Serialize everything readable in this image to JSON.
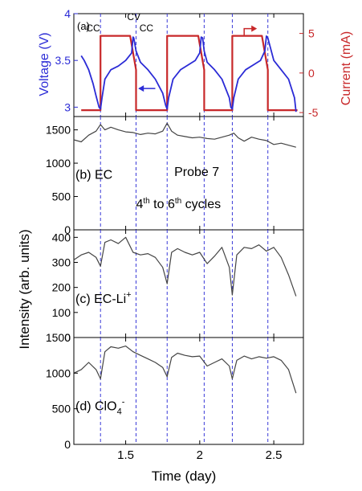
{
  "figure": {
    "shared_x": {
      "label": "Time (day)",
      "range": [
        1.15,
        2.7
      ],
      "ticks": [
        1.5,
        2,
        2.5
      ],
      "tick_labels": [
        "1.5",
        "2",
        "2.5"
      ],
      "vlines": [
        1.33,
        1.57,
        1.78,
        2.03,
        2.22,
        2.46
      ]
    },
    "shared_y_label": "Intensity (arb. units)",
    "colors": {
      "voltage": "#2b2bd6",
      "current": "#c8282a",
      "intensity": "#444444",
      "vline": "#3a3ad8"
    }
  },
  "chart_data": [
    {
      "panel": "a",
      "type": "line",
      "label": "(a)",
      "ylabel_left": "Voltage (V)",
      "ylabel_right": "Current (mA)",
      "ylim_left": [
        2.9,
        4.0
      ],
      "yticks_left": [
        "3",
        "3.5",
        "4"
      ],
      "ylim_right": [
        -5.5,
        7.5
      ],
      "yticks_right": [
        "-5",
        "0",
        "5"
      ],
      "annotations": [
        "CC",
        "CV",
        "CC"
      ],
      "series": [
        {
          "axis": "left",
          "x": [
            1.2,
            1.22,
            1.25,
            1.28,
            1.3,
            1.32,
            1.33,
            1.34,
            1.36,
            1.4,
            1.45,
            1.5,
            1.54,
            1.55,
            1.555,
            1.57,
            1.6,
            1.65,
            1.7,
            1.75,
            1.77,
            1.78,
            1.79,
            1.82,
            1.87,
            1.92,
            1.97,
            2.0,
            2.01,
            2.02,
            2.03,
            2.05,
            2.1,
            2.15,
            2.2,
            2.21,
            2.22,
            2.23,
            2.26,
            2.31,
            2.36,
            2.41,
            2.44,
            2.45,
            2.46,
            2.5,
            2.55,
            2.6,
            2.64,
            2.65
          ],
          "values": [
            3.55,
            3.5,
            3.4,
            3.25,
            3.12,
            3.0,
            2.98,
            3.1,
            3.3,
            3.4,
            3.44,
            3.5,
            3.58,
            3.75,
            3.74,
            3.6,
            3.48,
            3.4,
            3.3,
            3.15,
            3.02,
            2.98,
            3.1,
            3.3,
            3.4,
            3.45,
            3.5,
            3.58,
            3.75,
            3.74,
            3.6,
            3.48,
            3.4,
            3.3,
            3.1,
            3.0,
            2.98,
            3.1,
            3.3,
            3.4,
            3.45,
            3.5,
            3.6,
            3.76,
            3.74,
            3.5,
            3.4,
            3.3,
            3.1,
            2.95
          ]
        },
        {
          "axis": "right",
          "x": [
            1.2,
            1.33,
            1.33,
            1.53,
            1.53,
            1.57,
            1.57,
            1.78,
            1.78,
            1.99,
            1.99,
            2.03,
            2.03,
            2.22,
            2.22,
            2.42,
            2.42,
            2.46,
            2.46,
            2.66
          ],
          "values": [
            -4.7,
            -4.7,
            4.7,
            4.7,
            4.7,
            0.4,
            -4.7,
            -4.7,
            4.7,
            4.7,
            4.7,
            0.4,
            -4.7,
            -4.7,
            4.7,
            4.7,
            4.7,
            0.4,
            -4.7,
            -4.7
          ]
        }
      ]
    },
    {
      "panel": "b",
      "type": "line",
      "label": "(b)",
      "species": "EC",
      "text_probe": "Probe 7",
      "text_cycles": "4th to 6th cycles",
      "text_cycles_parts": [
        "4",
        "th",
        " to 6",
        "th",
        " cycles"
      ],
      "ylim": [
        0,
        1700
      ],
      "yticks": [
        "0",
        "500",
        "1000",
        "1500"
      ],
      "x": [
        1.15,
        1.2,
        1.25,
        1.3,
        1.33,
        1.36,
        1.4,
        1.45,
        1.5,
        1.55,
        1.6,
        1.65,
        1.7,
        1.75,
        1.78,
        1.81,
        1.85,
        1.9,
        1.95,
        2.0,
        2.05,
        2.1,
        2.15,
        2.2,
        2.23,
        2.26,
        2.3,
        2.35,
        2.4,
        2.45,
        2.5,
        2.55,
        2.6,
        2.65
      ],
      "values": [
        1350,
        1320,
        1420,
        1480,
        1580,
        1500,
        1540,
        1500,
        1470,
        1460,
        1430,
        1450,
        1440,
        1480,
        1600,
        1480,
        1420,
        1400,
        1380,
        1390,
        1370,
        1360,
        1390,
        1420,
        1450,
        1380,
        1330,
        1390,
        1360,
        1340,
        1280,
        1300,
        1270,
        1240
      ]
    },
    {
      "panel": "c",
      "type": "line",
      "label": "(c)",
      "species": "EC-Li",
      "species_sup": "+",
      "ylim": [
        0,
        430
      ],
      "yticks": [
        "0",
        "100",
        "200",
        "300",
        "400"
      ],
      "x": [
        1.15,
        1.2,
        1.25,
        1.3,
        1.33,
        1.36,
        1.4,
        1.45,
        1.5,
        1.55,
        1.6,
        1.65,
        1.7,
        1.75,
        1.78,
        1.81,
        1.85,
        1.9,
        1.95,
        2.0,
        2.05,
        2.1,
        2.15,
        2.2,
        2.22,
        2.25,
        2.3,
        2.35,
        2.4,
        2.45,
        2.5,
        2.55,
        2.6,
        2.65
      ],
      "values": [
        310,
        330,
        340,
        320,
        285,
        380,
        390,
        375,
        400,
        340,
        330,
        335,
        320,
        280,
        215,
        340,
        355,
        340,
        330,
        340,
        295,
        325,
        360,
        280,
        170,
        330,
        360,
        355,
        370,
        345,
        360,
        320,
        250,
        165
      ]
    },
    {
      "panel": "d",
      "type": "line",
      "label": "(d)",
      "species": "ClO",
      "species_sub": "4",
      "species_sup": "-",
      "ylim": [
        0,
        1500
      ],
      "yticks": [
        "0",
        "500",
        "1000",
        "1500"
      ],
      "x": [
        1.15,
        1.2,
        1.25,
        1.3,
        1.33,
        1.36,
        1.4,
        1.45,
        1.5,
        1.55,
        1.6,
        1.65,
        1.7,
        1.75,
        1.78,
        1.81,
        1.85,
        1.9,
        1.95,
        2.0,
        2.05,
        2.1,
        2.15,
        2.2,
        2.22,
        2.25,
        2.3,
        2.35,
        2.4,
        2.45,
        2.5,
        2.55,
        2.6,
        2.65
      ],
      "values": [
        1000,
        1050,
        1150,
        1050,
        920,
        1300,
        1370,
        1350,
        1380,
        1300,
        1250,
        1200,
        1150,
        1080,
        950,
        1220,
        1280,
        1250,
        1230,
        1240,
        1100,
        1150,
        1200,
        1100,
        920,
        1180,
        1240,
        1200,
        1230,
        1210,
        1230,
        1180,
        1050,
        720
      ]
    }
  ]
}
